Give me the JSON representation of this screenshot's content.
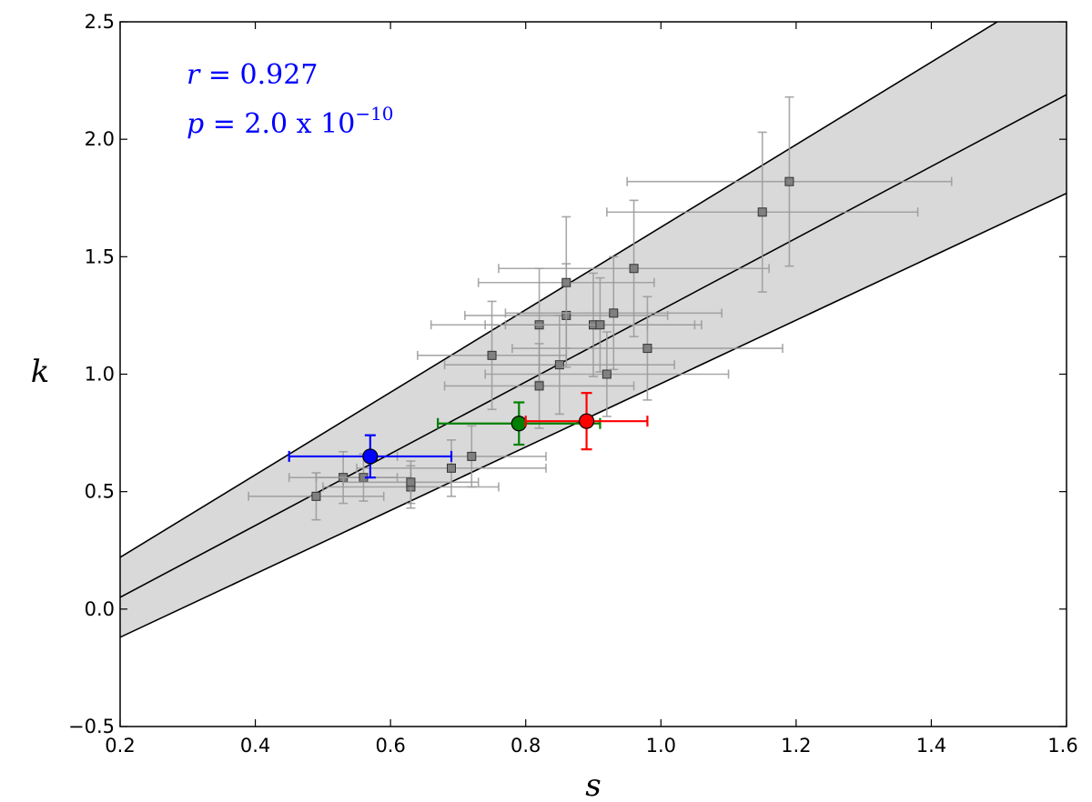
{
  "chart_data": {
    "type": "scatter",
    "title": "",
    "xlabel": "s",
    "ylabel": "k",
    "xlim": [
      0.2,
      1.6
    ],
    "ylim": [
      -0.5,
      2.5
    ],
    "xticks": [
      "0.2",
      "0.4",
      "0.6",
      "0.8",
      "1.0",
      "1.2",
      "1.4",
      "1.6"
    ],
    "yticks": [
      "−0.5",
      "0.0",
      "0.5",
      "1.0",
      "1.5",
      "2.0",
      "2.5"
    ],
    "grid": false,
    "annotations": {
      "r_var": "r",
      "r_text": " = 0.927",
      "p_var": "p",
      "p_text": " = 2.0 x 10",
      "p_exp": "−10",
      "color": "#0000ff"
    },
    "fit": {
      "line": {
        "x": [
          0.2,
          1.6
        ],
        "y": [
          0.05,
          2.19
        ]
      },
      "upper": {
        "x": [
          0.2,
          1.6
        ],
        "y": [
          0.22,
          2.68
        ]
      },
      "lower": {
        "x": [
          0.2,
          1.6
        ],
        "y": [
          -0.12,
          1.77
        ]
      },
      "band_color": "#d9d9d9"
    },
    "background_points": {
      "color": "#808080",
      "points": [
        {
          "x": 0.49,
          "y": 0.48,
          "xerr": 0.1,
          "yerr": 0.1
        },
        {
          "x": 0.53,
          "y": 0.56,
          "xerr": 0.08,
          "yerr": 0.11
        },
        {
          "x": 0.56,
          "y": 0.56,
          "xerr": 0.07,
          "yerr": 0.1
        },
        {
          "x": 0.63,
          "y": 0.52,
          "xerr": 0.13,
          "yerr": 0.09
        },
        {
          "x": 0.63,
          "y": 0.54,
          "xerr": 0.1,
          "yerr": 0.09
        },
        {
          "x": 0.69,
          "y": 0.6,
          "xerr": 0.14,
          "yerr": 0.12
        },
        {
          "x": 0.72,
          "y": 0.65,
          "xerr": 0.11,
          "yerr": 0.13
        },
        {
          "x": 0.75,
          "y": 1.08,
          "xerr": 0.11,
          "yerr": 0.23
        },
        {
          "x": 0.82,
          "y": 1.21,
          "xerr": 0.16,
          "yerr": 0.24
        },
        {
          "x": 0.82,
          "y": 0.95,
          "xerr": 0.14,
          "yerr": 0.18
        },
        {
          "x": 0.85,
          "y": 1.04,
          "xerr": 0.17,
          "yerr": 0.21
        },
        {
          "x": 0.86,
          "y": 1.25,
          "xerr": 0.15,
          "yerr": 0.22
        },
        {
          "x": 0.86,
          "y": 1.39,
          "xerr": 0.13,
          "yerr": 0.28
        },
        {
          "x": 0.9,
          "y": 1.21,
          "xerr": 0.16,
          "yerr": 0.22
        },
        {
          "x": 0.91,
          "y": 1.21,
          "xerr": 0.14,
          "yerr": 0.2
        },
        {
          "x": 0.92,
          "y": 1.0,
          "xerr": 0.18,
          "yerr": 0.18
        },
        {
          "x": 0.93,
          "y": 1.26,
          "xerr": 0.16,
          "yerr": 0.24
        },
        {
          "x": 0.96,
          "y": 1.45,
          "xerr": 0.2,
          "yerr": 0.29
        },
        {
          "x": 0.98,
          "y": 1.11,
          "xerr": 0.2,
          "yerr": 0.22
        },
        {
          "x": 1.15,
          "y": 1.69,
          "xerr": 0.23,
          "yerr": 0.34
        },
        {
          "x": 1.19,
          "y": 1.82,
          "xerr": 0.24,
          "yerr": 0.36
        }
      ]
    },
    "highlight_points": [
      {
        "x": 0.57,
        "y": 0.65,
        "xerr_minus": 0.12,
        "xerr_plus": 0.12,
        "yerr": 0.09,
        "color": "#0000ff"
      },
      {
        "x": 0.79,
        "y": 0.79,
        "xerr_minus": 0.12,
        "xerr_plus": 0.12,
        "yerr": 0.09,
        "color": "#008000"
      },
      {
        "x": 0.89,
        "y": 0.8,
        "xerr_minus": 0.09,
        "xerr_plus": 0.09,
        "yerr": 0.12,
        "color": "#ff0000"
      }
    ]
  }
}
